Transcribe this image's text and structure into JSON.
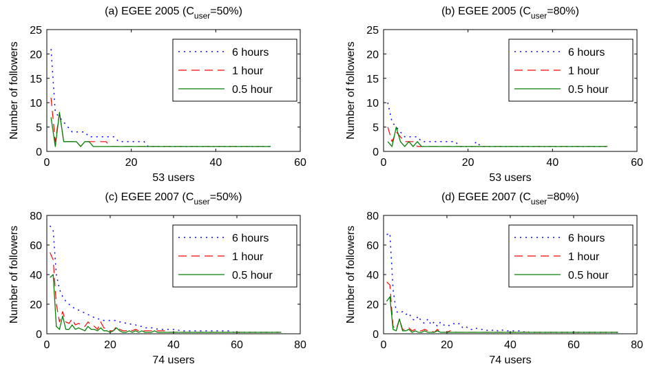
{
  "figure": {
    "ylabel": "Number of followers"
  },
  "chart_data": [
    {
      "type": "line",
      "title_main": "(a) EGEE 2005 (C",
      "title_sub": "user",
      "title_tail": "=50%)",
      "xlabel": "53 users",
      "ylabel": "Number of followers",
      "xlim": [
        0,
        60
      ],
      "ylim": [
        0,
        25
      ],
      "xticks": [
        0,
        20,
        40,
        60
      ],
      "yticks": [
        0,
        5,
        10,
        15,
        20,
        25
      ],
      "grid": false,
      "legend_position": "top-right",
      "series": [
        {
          "name": "6 hours",
          "color": "#0000ff",
          "dash": "dotted",
          "values": [
            21,
            8,
            7,
            6,
            5,
            4,
            4,
            4,
            4,
            3,
            3,
            3,
            3,
            3,
            3,
            3,
            2,
            2,
            2,
            2,
            2,
            2,
            2,
            1,
            1,
            1,
            1,
            1,
            1,
            1,
            1,
            1,
            1,
            1,
            1,
            1,
            1,
            1,
            1,
            1,
            1,
            1,
            1,
            1,
            1,
            1,
            1,
            1,
            1,
            1,
            1,
            1,
            1
          ]
        },
        {
          "name": "1 hour",
          "color": "#ff0000",
          "dash": "dashed",
          "values": [
            11,
            2,
            8,
            2,
            2,
            2,
            2,
            1,
            2,
            2,
            2,
            2,
            2,
            2,
            1,
            1,
            1,
            1,
            1,
            1,
            1,
            1,
            1,
            1,
            1,
            1,
            1,
            1,
            1,
            1,
            1,
            1,
            1,
            1,
            1,
            1,
            1,
            1,
            1,
            1,
            1,
            1,
            1,
            1,
            1,
            1,
            1,
            1,
            1,
            1,
            1,
            1,
            1
          ]
        },
        {
          "name": "0.5 hour",
          "color": "#008000",
          "dash": "solid",
          "values": [
            7,
            1,
            8,
            2,
            2,
            2,
            2,
            1,
            2,
            2,
            1,
            1,
            1,
            1,
            1,
            1,
            1,
            1,
            1,
            1,
            1,
            1,
            1,
            1,
            1,
            1,
            1,
            1,
            1,
            1,
            1,
            1,
            1,
            1,
            1,
            1,
            1,
            1,
            1,
            1,
            1,
            1,
            1,
            1,
            1,
            1,
            1,
            1,
            1,
            1,
            1,
            1,
            1
          ]
        }
      ]
    },
    {
      "type": "line",
      "title_main": "(b) EGEE 2005 (C",
      "title_sub": "user",
      "title_tail": "=80%)",
      "xlabel": "53 users",
      "ylabel": "Number of followers",
      "xlim": [
        0,
        60
      ],
      "ylim": [
        0,
        25
      ],
      "xticks": [
        0,
        20,
        40,
        60
      ],
      "yticks": [
        0,
        5,
        10,
        15,
        20,
        25
      ],
      "grid": false,
      "legend_position": "top-right",
      "series": [
        {
          "name": "6 hours",
          "color": "#0000ff",
          "dash": "dotted",
          "values": [
            10,
            6,
            5,
            4,
            3,
            3,
            3,
            3,
            2,
            2,
            2,
            2,
            2,
            2,
            2,
            2,
            2,
            1,
            1,
            1,
            1,
            2,
            1,
            1,
            1,
            1,
            1,
            1,
            1,
            1,
            1,
            1,
            1,
            1,
            1,
            1,
            1,
            1,
            1,
            1,
            1,
            1,
            1,
            1,
            1,
            1,
            1,
            1,
            1,
            1,
            1,
            1,
            1
          ]
        },
        {
          "name": "1 hour",
          "color": "#ff0000",
          "dash": "dashed",
          "values": [
            5,
            2,
            4,
            3,
            2,
            2,
            2,
            1,
            1,
            1,
            1,
            1,
            1,
            1,
            1,
            1,
            1,
            1,
            1,
            1,
            1,
            1,
            1,
            1,
            1,
            1,
            1,
            1,
            1,
            1,
            1,
            1,
            1,
            1,
            1,
            1,
            1,
            1,
            1,
            1,
            1,
            1,
            1,
            1,
            1,
            1,
            1,
            1,
            1,
            1,
            1,
            1,
            1
          ]
        },
        {
          "name": "0.5 hour",
          "color": "#008000",
          "dash": "solid",
          "values": [
            2,
            1,
            5,
            2,
            1,
            2,
            1,
            2,
            1,
            1,
            1,
            1,
            1,
            1,
            1,
            1,
            1,
            1,
            1,
            1,
            1,
            1,
            1,
            1,
            1,
            1,
            1,
            1,
            1,
            1,
            1,
            1,
            1,
            1,
            1,
            1,
            1,
            1,
            1,
            1,
            1,
            1,
            1,
            1,
            1,
            1,
            1,
            1,
            1,
            1,
            1,
            1,
            1
          ]
        }
      ]
    },
    {
      "type": "line",
      "title_main": "(c) EGEE 2007 (C",
      "title_sub": "user",
      "title_tail": "=50%)",
      "xlabel": "74 users",
      "ylabel": "Number of followers",
      "xlim": [
        0,
        80
      ],
      "ylim": [
        0,
        80
      ],
      "xticks": [
        0,
        20,
        40,
        60,
        80
      ],
      "yticks": [
        0,
        20,
        40,
        60,
        80
      ],
      "grid": false,
      "legend_position": "top-right",
      "series": [
        {
          "name": "6 hours",
          "color": "#0000ff",
          "dash": "dotted",
          "values": [
            73,
            70,
            40,
            30,
            25,
            22,
            20,
            18,
            17,
            16,
            15,
            14,
            13,
            12,
            11,
            10,
            10,
            9,
            9,
            9,
            9,
            9,
            8,
            8,
            7,
            7,
            6,
            6,
            5,
            5,
            4,
            4,
            4,
            4,
            3,
            3,
            3,
            3,
            3,
            3,
            3,
            2,
            2,
            2,
            2,
            2,
            2,
            2,
            2,
            2,
            2,
            2,
            2,
            2,
            2,
            2,
            2,
            2,
            1,
            1,
            1,
            1,
            1,
            1,
            1,
            1,
            1,
            1,
            1,
            1,
            1,
            1,
            1,
            1
          ]
        },
        {
          "name": "1 hour",
          "color": "#ff0000",
          "dash": "dashed",
          "values": [
            55,
            50,
            20,
            8,
            15,
            8,
            7,
            10,
            6,
            7,
            6,
            5,
            8,
            6,
            5,
            3,
            8,
            4,
            3,
            2,
            2,
            5,
            3,
            2,
            2,
            3,
            2,
            3,
            2,
            2,
            2,
            2,
            2,
            2,
            2,
            2,
            2,
            2,
            1,
            1,
            1,
            1,
            1,
            1,
            1,
            1,
            1,
            1,
            1,
            1,
            1,
            1,
            1,
            1,
            1,
            1,
            1,
            1,
            1,
            1,
            1,
            1,
            1,
            1,
            1,
            1,
            1,
            1,
            1,
            1,
            1,
            1,
            1,
            1
          ]
        },
        {
          "name": "0.5 hour",
          "color": "#008000",
          "dash": "solid",
          "values": [
            38,
            40,
            5,
            3,
            12,
            3,
            3,
            6,
            3,
            4,
            3,
            2,
            5,
            3,
            3,
            2,
            4,
            2,
            2,
            1,
            2,
            4,
            2,
            1,
            1,
            2,
            1,
            2,
            1,
            2,
            1,
            1,
            1,
            2,
            1,
            1,
            1,
            1,
            1,
            1,
            1,
            1,
            1,
            1,
            1,
            1,
            1,
            1,
            1,
            1,
            1,
            1,
            1,
            1,
            1,
            1,
            1,
            1,
            1,
            1,
            1,
            1,
            1,
            1,
            1,
            1,
            1,
            1,
            1,
            1,
            1,
            1,
            1,
            1
          ]
        }
      ]
    },
    {
      "type": "line",
      "title_main": "(d) EGEE 2007 (C",
      "title_sub": "user",
      "title_tail": "=80%)",
      "xlabel": "74 users",
      "ylabel": "Number of followers",
      "xlim": [
        0,
        80
      ],
      "ylim": [
        0,
        80
      ],
      "xticks": [
        0,
        20,
        40,
        60,
        80
      ],
      "yticks": [
        0,
        20,
        40,
        60,
        80
      ],
      "grid": false,
      "legend_position": "top-right",
      "series": [
        {
          "name": "6 hours",
          "color": "#0000ff",
          "dash": "dotted",
          "values": [
            67,
            68,
            30,
            15,
            14,
            15,
            13,
            14,
            10,
            9,
            12,
            8,
            7,
            10,
            6,
            8,
            5,
            8,
            6,
            5,
            6,
            7,
            6,
            7,
            4,
            5,
            3,
            3,
            4,
            3,
            3,
            3,
            2,
            2,
            3,
            2,
            3,
            2,
            2,
            2,
            2,
            2,
            2,
            1,
            2,
            1,
            1,
            1,
            1,
            1,
            1,
            1,
            1,
            1,
            1,
            1,
            1,
            1,
            1,
            1,
            1,
            1,
            1,
            1,
            1,
            1,
            1,
            1,
            1,
            1,
            1,
            1,
            1,
            1
          ]
        },
        {
          "name": "1 hour",
          "color": "#ff0000",
          "dash": "dashed",
          "values": [
            35,
            33,
            5,
            3,
            10,
            3,
            3,
            4,
            2,
            3,
            2,
            2,
            3,
            2,
            2,
            1,
            3,
            1,
            1,
            1,
            2,
            2,
            1,
            1,
            1,
            1,
            1,
            1,
            1,
            1,
            1,
            1,
            1,
            1,
            1,
            1,
            1,
            1,
            1,
            1,
            1,
            1,
            1,
            1,
            1,
            1,
            1,
            1,
            1,
            1,
            1,
            1,
            1,
            1,
            1,
            1,
            1,
            1,
            1,
            1,
            1,
            1,
            1,
            1,
            1,
            1,
            1,
            1,
            1,
            1,
            1,
            1,
            1,
            1
          ]
        },
        {
          "name": "0.5 hour",
          "color": "#008000",
          "dash": "solid",
          "values": [
            22,
            25,
            3,
            2,
            10,
            2,
            2,
            3,
            1,
            2,
            1,
            1,
            2,
            1,
            1,
            1,
            2,
            1,
            1,
            1,
            1,
            1,
            1,
            1,
            1,
            1,
            1,
            1,
            1,
            1,
            1,
            1,
            1,
            1,
            1,
            1,
            1,
            1,
            1,
            1,
            1,
            1,
            1,
            1,
            1,
            1,
            1,
            1,
            1,
            1,
            1,
            1,
            1,
            1,
            1,
            1,
            1,
            1,
            1,
            1,
            1,
            1,
            1,
            1,
            1,
            1,
            1,
            1,
            1,
            1,
            1,
            1,
            1,
            1
          ]
        }
      ]
    }
  ]
}
